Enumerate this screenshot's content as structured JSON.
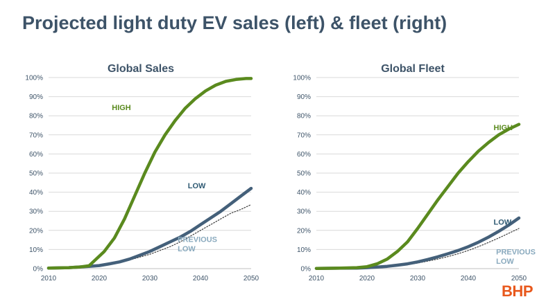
{
  "slide": {
    "title": "Projected light duty EV sales (left) & fleet (right)",
    "logo_text": "BHP"
  },
  "colors": {
    "high": "#5a8a1e",
    "low": "#44607a",
    "previous_low": "#3d3d3d",
    "grid": "#d9d9d9",
    "axis_text": "#3d5368",
    "label_high": "#5a8a1e",
    "label_low": "#2f5a73",
    "label_previous": "#8aaabe"
  },
  "chart_data": [
    {
      "type": "line",
      "title": "Global Sales",
      "xlim": [
        2010,
        2050
      ],
      "ylim": [
        0,
        100
      ],
      "x_ticks": [
        "2010",
        "2020",
        "2030",
        "2040",
        "2050"
      ],
      "y_ticks": [
        "0%",
        "10%",
        "20%",
        "30%",
        "40%",
        "50%",
        "60%",
        "70%",
        "80%",
        "90%",
        "100%"
      ],
      "series": [
        {
          "name": "HIGH",
          "style": "high",
          "x": [
            2010,
            2014,
            2016,
            2018,
            2019,
            2021,
            2023,
            2025,
            2027,
            2029,
            2031,
            2033,
            2035,
            2037,
            2039,
            2041,
            2043,
            2045,
            2047,
            2049,
            2050
          ],
          "values": [
            0.3,
            0.5,
            0.8,
            1.5,
            4,
            9,
            16,
            26,
            38,
            50,
            61,
            70,
            77.5,
            84,
            89,
            93,
            96,
            98,
            99,
            99.5,
            99.5
          ]
        },
        {
          "name": "LOW",
          "style": "low",
          "x": [
            2010,
            2014,
            2018,
            2020,
            2022,
            2024,
            2026,
            2028,
            2030,
            2032,
            2034,
            2036,
            2038,
            2040,
            2042,
            2044,
            2046,
            2048,
            2050
          ],
          "values": [
            0.3,
            0.5,
            1.2,
            1.6,
            2.5,
            3.5,
            5,
            7,
            9,
            11.5,
            14,
            16.5,
            19.5,
            23,
            26.5,
            30,
            34,
            38,
            42
          ]
        },
        {
          "name": "PREVIOUS LOW",
          "style": "previous",
          "x": [
            2010,
            2014,
            2018,
            2020,
            2022,
            2024,
            2026,
            2028,
            2030,
            2032,
            2034,
            2036,
            2038,
            2040,
            2042,
            2044,
            2046,
            2048,
            2050
          ],
          "values": [
            0.3,
            0.5,
            1,
            1.3,
            2,
            3,
            4.5,
            6,
            7.5,
            9.5,
            11.5,
            14,
            17,
            20,
            23,
            26,
            29,
            31,
            33.5
          ]
        }
      ],
      "labels": [
        {
          "text": "HIGH",
          "style": "high",
          "x": 2022.5,
          "y": 83
        },
        {
          "text": "LOW",
          "style": "low",
          "x": 2037.5,
          "y": 42
        },
        {
          "text": "PREVIOUS",
          "style": "previous",
          "x": 2035.5,
          "y": 14
        },
        {
          "text": "LOW",
          "style": "previous",
          "x": 2035.5,
          "y": 9
        }
      ]
    },
    {
      "type": "line",
      "title": "Global Fleet",
      "xlim": [
        2010,
        2050
      ],
      "ylim": [
        0,
        100
      ],
      "x_ticks": [
        "2010",
        "2020",
        "2030",
        "2040",
        "2050"
      ],
      "y_ticks": [
        "0%",
        "10%",
        "20%",
        "30%",
        "40%",
        "50%",
        "60%",
        "70%",
        "80%",
        "90%",
        "100%"
      ],
      "series": [
        {
          "name": "HIGH",
          "style": "high",
          "x": [
            2010,
            2014,
            2018,
            2020,
            2022,
            2024,
            2026,
            2028,
            2030,
            2032,
            2034,
            2036,
            2038,
            2040,
            2042,
            2044,
            2046,
            2048,
            2050
          ],
          "values": [
            0.1,
            0.2,
            0.5,
            1,
            2.5,
            5,
            9,
            14,
            21,
            28.5,
            36,
            43,
            50,
            56,
            61.5,
            66,
            70,
            73,
            75.5
          ]
        },
        {
          "name": "LOW",
          "style": "low",
          "x": [
            2010,
            2014,
            2018,
            2020,
            2022,
            2024,
            2026,
            2028,
            2030,
            2032,
            2034,
            2036,
            2038,
            2040,
            2042,
            2044,
            2046,
            2048,
            2050
          ],
          "values": [
            0.1,
            0.2,
            0.3,
            0.5,
            0.8,
            1.2,
            1.8,
            2.5,
            3.5,
            4.8,
            6.2,
            7.8,
            9.5,
            11.5,
            13.8,
            16.5,
            19.5,
            22.8,
            26.5
          ]
        },
        {
          "name": "PREVIOUS LOW",
          "style": "previous",
          "x": [
            2010,
            2014,
            2018,
            2020,
            2022,
            2024,
            2026,
            2028,
            2030,
            2032,
            2034,
            2036,
            2038,
            2040,
            2042,
            2044,
            2046,
            2048,
            2050
          ],
          "values": [
            0.1,
            0.2,
            0.3,
            0.5,
            0.7,
            1,
            1.5,
            2.1,
            2.9,
            3.9,
            5,
            6.3,
            7.8,
            9.5,
            11.5,
            13.7,
            16,
            18.5,
            21
          ]
        }
      ],
      "labels": [
        {
          "text": "HIGH",
          "style": "high",
          "x": 2045,
          "y": 72.5
        },
        {
          "text": "LOW",
          "style": "low",
          "x": 2045,
          "y": 23
        },
        {
          "text": "PREVIOUS",
          "style": "previous",
          "x": 2045.5,
          "y": 7.5
        },
        {
          "text": "LOW",
          "style": "previous",
          "x": 2045.5,
          "y": 2.5
        }
      ]
    }
  ]
}
